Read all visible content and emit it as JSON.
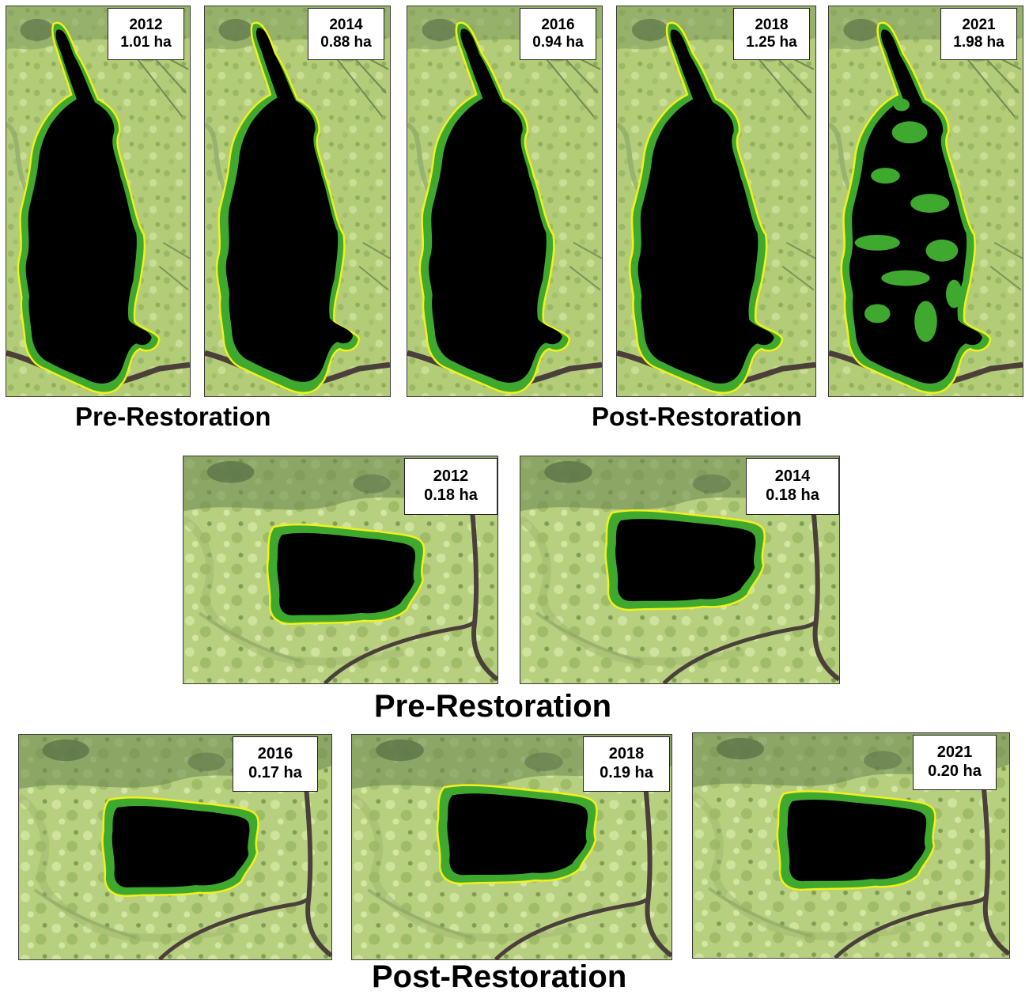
{
  "wetland_a": {
    "panels": [
      {
        "year": "2012",
        "area": "1.01 ha"
      },
      {
        "year": "2014",
        "area": "0.88 ha"
      },
      {
        "year": "2016",
        "area": "0.94 ha"
      },
      {
        "year": "2018",
        "area": "1.25 ha"
      },
      {
        "year": "2021",
        "area": "1.98 ha"
      }
    ],
    "pre_caption": "Pre-Restoration",
    "post_caption": "Post-Restoration"
  },
  "wetland_b": {
    "pre_panels": [
      {
        "year": "2012",
        "area": "0.18 ha"
      },
      {
        "year": "2014",
        "area": "0.18 ha"
      }
    ],
    "pre_caption": "Pre-Restoration",
    "post_panels": [
      {
        "year": "2016",
        "area": "0.17 ha"
      },
      {
        "year": "2018",
        "area": "0.19 ha"
      },
      {
        "year": "2021",
        "area": "0.20 ha"
      }
    ],
    "post_caption": "Post-Restoration"
  },
  "colors": {
    "water": "#000000",
    "vegetation_buffer": "#3fa82e",
    "boundary_outline": "#f2f21a",
    "land_light": "#b9d27e",
    "land_dark": "#5f7a46",
    "channel": "#4a3f3a"
  }
}
